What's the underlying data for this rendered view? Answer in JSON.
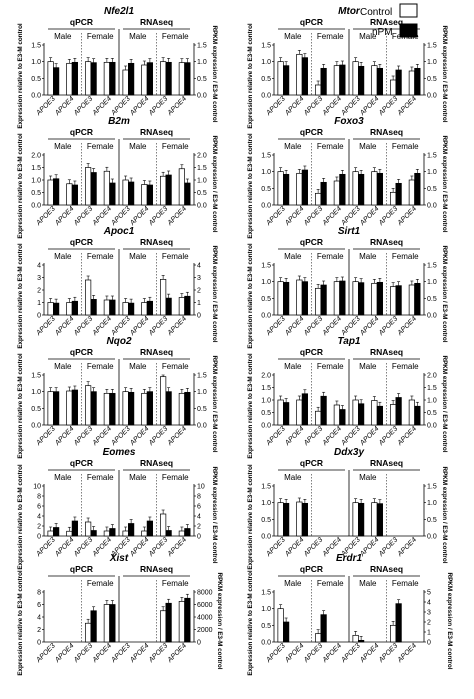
{
  "legend": {
    "control": "Control",
    "treated": "nPM"
  },
  "common": {
    "method_left": "qPCR",
    "method_right": "RNAseq",
    "sex_male": "Male",
    "sex_female": "Female",
    "y_left": "Expression relative to E3-M control",
    "y_right": "RPKM expression / E3-M control",
    "genotypes": [
      "APOE3",
      "APOE4",
      "APOE3",
      "APOE4",
      "APOE3",
      "APOE4",
      "APOE3",
      "APOE4"
    ]
  },
  "chart_data": [
    {
      "type": "bar",
      "title": "Nfe2l1",
      "ylim": [
        0,
        1.5
      ],
      "yticks": [
        0,
        0.5,
        1,
        1.5
      ],
      "ytick_labels": [
        "0.0",
        "0.5",
        "1.0",
        "1.5"
      ],
      "series": [
        {
          "name": "Control",
          "values": [
            1.0,
            0.95,
            1.0,
            0.98,
            0.75,
            0.9,
            1.0,
            0.97
          ]
        },
        {
          "name": "nPM",
          "values": [
            0.82,
            0.98,
            0.97,
            0.98,
            0.95,
            0.97,
            0.98,
            0.97
          ]
        }
      ]
    },
    {
      "type": "bar",
      "title": "Mtor",
      "ylim": [
        0,
        1.5
      ],
      "yticks": [
        0,
        0.5,
        1,
        1.5
      ],
      "ytick_labels": [
        "0.0",
        "0.5",
        "1.0",
        "1.5"
      ],
      "series": [
        {
          "name": "Control",
          "values": [
            1.0,
            1.22,
            0.3,
            0.88,
            1.0,
            0.88,
            0.45,
            0.72
          ]
        },
        {
          "name": "nPM",
          "values": [
            0.88,
            1.12,
            0.8,
            0.9,
            0.86,
            0.8,
            0.75,
            0.8
          ]
        }
      ]
    },
    {
      "type": "bar",
      "title": "B2m",
      "ylim": [
        0,
        2
      ],
      "yticks": [
        0,
        0.5,
        1,
        1.5,
        2
      ],
      "ytick_labels": [
        "0.0",
        "0.5",
        "1.0",
        "1.5",
        "2.0"
      ],
      "series": [
        {
          "name": "Control",
          "values": [
            1.0,
            0.85,
            1.5,
            1.35,
            1.0,
            0.82,
            1.15,
            1.45
          ]
        },
        {
          "name": "nPM",
          "values": [
            1.05,
            0.8,
            1.3,
            0.88,
            0.92,
            0.8,
            1.2,
            0.88
          ]
        }
      ]
    },
    {
      "type": "bar",
      "title": "Foxo3",
      "ylim": [
        0,
        1.5
      ],
      "yticks": [
        0,
        0.5,
        1,
        1.5
      ],
      "ytick_labels": [
        "0.0",
        "0.5",
        "1.0",
        "1.5"
      ],
      "series": [
        {
          "name": "Control",
          "values": [
            1.0,
            0.95,
            0.35,
            0.72,
            1.0,
            1.0,
            0.38,
            0.75
          ]
        },
        {
          "name": "nPM",
          "values": [
            0.92,
            1.05,
            0.68,
            0.92,
            0.92,
            0.95,
            0.65,
            0.95
          ]
        }
      ]
    },
    {
      "type": "bar",
      "title": "Apoc1",
      "ylim": [
        0,
        4
      ],
      "yticks": [
        0,
        1,
        2,
        3,
        4
      ],
      "ytick_labels": [
        "0",
        "1",
        "2",
        "3",
        "4"
      ],
      "series": [
        {
          "name": "Control",
          "values": [
            1.0,
            1.0,
            2.8,
            1.2,
            1.0,
            1.0,
            2.85,
            1.4
          ]
        },
        {
          "name": "nPM",
          "values": [
            0.95,
            1.1,
            1.25,
            1.2,
            0.95,
            1.1,
            1.35,
            1.5
          ]
        }
      ]
    },
    {
      "type": "bar",
      "title": "Sirt1",
      "ylim": [
        0,
        1.5
      ],
      "yticks": [
        0,
        0.5,
        1,
        1.5
      ],
      "ytick_labels": [
        "0.0",
        "0.5",
        "1.0",
        "1.5"
      ],
      "series": [
        {
          "name": "Control",
          "values": [
            1.0,
            1.05,
            0.8,
            1.0,
            1.0,
            0.95,
            0.85,
            0.9
          ]
        },
        {
          "name": "nPM",
          "values": [
            0.98,
            1.0,
            0.9,
            1.02,
            0.97,
            0.98,
            0.88,
            0.95
          ]
        }
      ]
    },
    {
      "type": "bar",
      "title": "Nqo2",
      "ylim": [
        0,
        1.5
      ],
      "yticks": [
        0,
        0.5,
        1,
        1.5
      ],
      "ytick_labels": [
        "0.0",
        "0.5",
        "1.0",
        "1.5"
      ],
      "series": [
        {
          "name": "Control",
          "values": [
            1.0,
            1.02,
            1.18,
            0.95,
            1.0,
            0.95,
            1.45,
            0.95
          ]
        },
        {
          "name": "nPM",
          "values": [
            1.0,
            1.05,
            1.0,
            0.95,
            0.98,
            1.0,
            1.0,
            0.98
          ]
        }
      ]
    },
    {
      "type": "bar",
      "title": "Tap1",
      "ylim": [
        0,
        2
      ],
      "yticks": [
        0,
        0.5,
        1,
        1.5,
        2
      ],
      "ytick_labels": [
        "0.0",
        "0.5",
        "1.0",
        "1.5",
        "2.0"
      ],
      "series": [
        {
          "name": "Control",
          "values": [
            1.0,
            1.0,
            0.55,
            0.8,
            1.0,
            0.98,
            0.82,
            1.0
          ]
        },
        {
          "name": "nPM",
          "values": [
            0.9,
            1.25,
            1.15,
            0.62,
            0.85,
            0.75,
            1.1,
            0.75
          ]
        }
      ]
    },
    {
      "type": "bar",
      "title": "Eomes",
      "ylim": [
        0,
        10
      ],
      "yticks": [
        0,
        2,
        4,
        6,
        8,
        10
      ],
      "ytick_labels": [
        "0",
        "2",
        "4",
        "6",
        "8",
        "10"
      ],
      "series": [
        {
          "name": "Control",
          "values": [
            1.0,
            0.95,
            2.8,
            1.0,
            1.0,
            1.0,
            4.4,
            1.0
          ]
        },
        {
          "name": "nPM",
          "values": [
            1.7,
            3.0,
            1.1,
            1.5,
            2.5,
            3.0,
            1.1,
            1.5
          ]
        }
      ]
    },
    {
      "type": "bar",
      "title": "Ddx3y",
      "ylim": [
        0,
        1.5
      ],
      "yticks": [
        0,
        0.5,
        1,
        1.5
      ],
      "ytick_labels": [
        "0.0",
        "0.5",
        "1.0",
        "1.5"
      ],
      "groups_shown": [
        "male"
      ],
      "series": [
        {
          "name": "Control",
          "values": [
            1.0,
            1.02,
            null,
            null,
            1.0,
            1.0,
            null,
            null
          ]
        },
        {
          "name": "nPM",
          "values": [
            0.98,
            0.98,
            null,
            null,
            0.98,
            0.97,
            null,
            null
          ]
        }
      ]
    },
    {
      "type": "bar",
      "title": "Xist",
      "ylim": [
        0,
        8
      ],
      "yticks": [
        0,
        2,
        4,
        6,
        8
      ],
      "ytick_labels": [
        "0",
        "2",
        "4",
        "6",
        "8"
      ],
      "ylim_right": [
        0,
        8000
      ],
      "yticks_right": [
        0,
        2000,
        4000,
        6000,
        8000
      ],
      "ytick_labels_right": [
        "0",
        "2000",
        "4000",
        "6000",
        "8000"
      ],
      "groups_shown": [
        "female"
      ],
      "series": [
        {
          "name": "Control",
          "values": [
            null,
            null,
            3.0,
            6.0,
            null,
            null,
            5.0,
            6.5
          ]
        },
        {
          "name": "nPM",
          "values": [
            null,
            null,
            5.0,
            6.0,
            null,
            null,
            6.2,
            7.0
          ]
        }
      ]
    },
    {
      "type": "bar",
      "title": "Erdr1",
      "ylim": [
        0,
        1.5
      ],
      "yticks": [
        0,
        0.5,
        1,
        1.5
      ],
      "ytick_labels": [
        "0.0",
        "0.5",
        "1.0",
        "1.5"
      ],
      "ylim_right": [
        0,
        5
      ],
      "yticks_right": [
        0,
        1,
        2,
        3,
        4,
        5
      ],
      "ytick_labels_right": [
        "0",
        "1",
        "2",
        "3",
        "4",
        "5"
      ],
      "series": [
        {
          "name": "Control",
          "values": [
            1.0,
            null,
            0.25,
            null,
            0.2,
            null,
            0.5,
            null
          ]
        },
        {
          "name": "nPM",
          "values": [
            0.6,
            null,
            0.82,
            null,
            0.05,
            null,
            1.15,
            null
          ]
        }
      ]
    }
  ]
}
